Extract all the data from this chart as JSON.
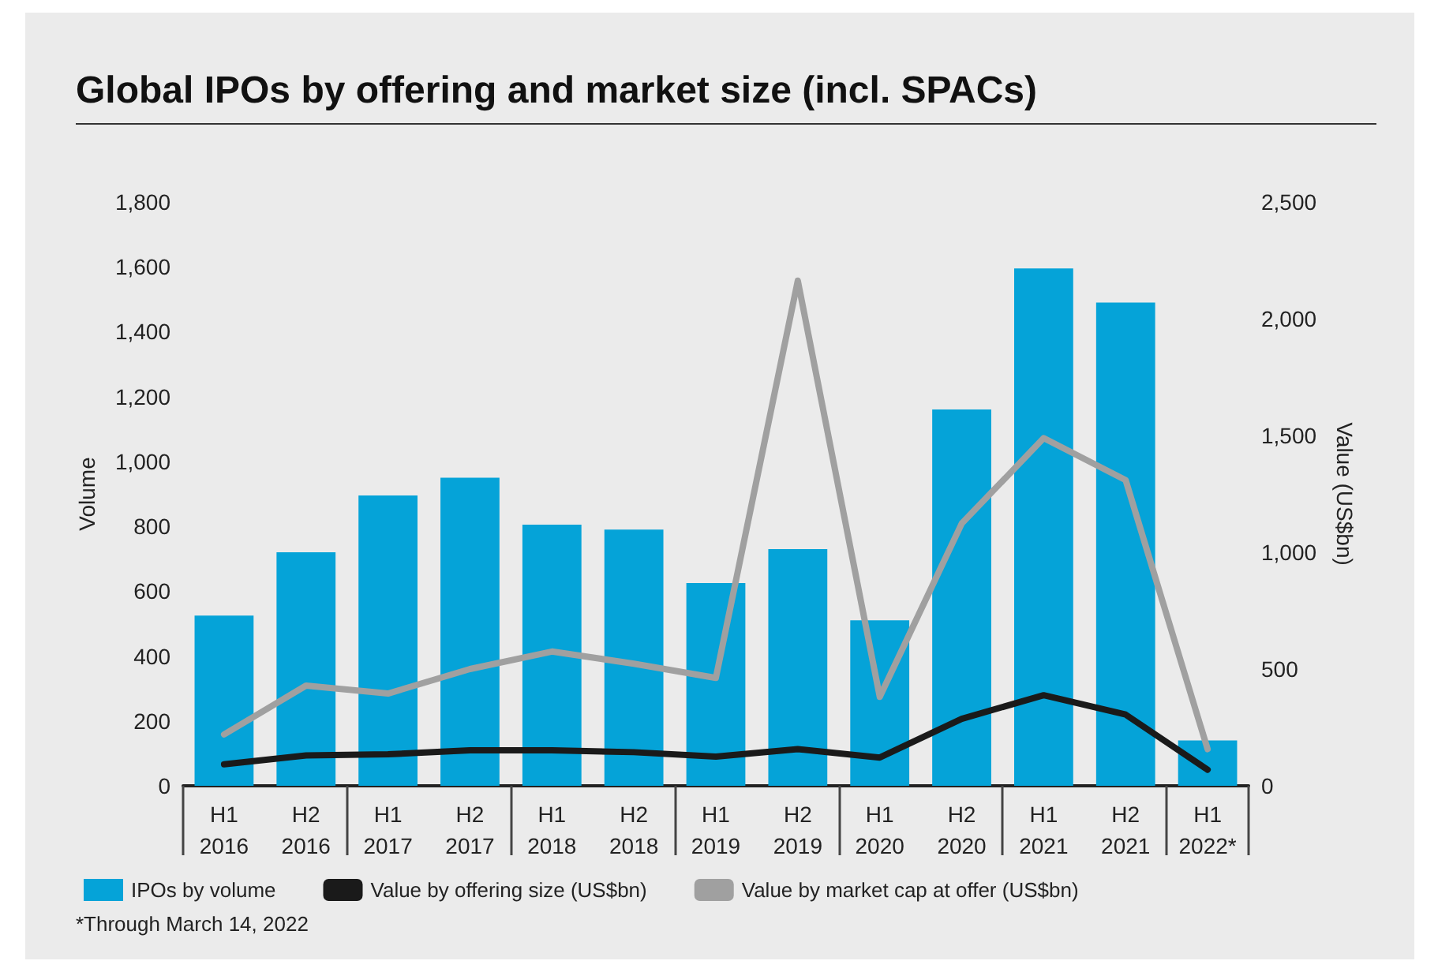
{
  "chart_data": {
    "type": "bar",
    "title": "Global IPOs by offering and market size (incl. SPACs)",
    "ylabel": "Volume",
    "y2label": "Value (US$bn)",
    "categories": [
      "H1\n2016",
      "H2\n2016",
      "H1\n2017",
      "H2\n2017",
      "H1\n2018",
      "H2\n2018",
      "H1\n2019",
      "H2\n2019",
      "H1\n2020",
      "H2\n2020",
      "H1\n2021",
      "H2\n2021",
      "H1\n2022*"
    ],
    "series": [
      {
        "name": "IPOs by volume",
        "color": "#05a3d8",
        "values": [
          525,
          720,
          895,
          950,
          805,
          790,
          625,
          730,
          510,
          1160,
          1595,
          1490,
          140
        ]
      },
      {
        "name": "Value by offering size (US$bn)",
        "type": "line",
        "axis": "y2",
        "color": "#1a1a1a",
        "values": [
          92,
          130,
          135,
          152,
          152,
          144,
          125,
          157,
          121,
          287,
          388,
          305,
          69
        ]
      },
      {
        "name": "Value by market cap at offer (US$bn)",
        "type": "line",
        "axis": "y2",
        "color": "#a0a0a0",
        "values": [
          220,
          429,
          395,
          500,
          575,
          523,
          462,
          2163,
          381,
          1123,
          1489,
          1309,
          157
        ]
      }
    ],
    "ylim": [
      0,
      1800
    ],
    "yticks": [
      0,
      {
        "value": 200,
        "label": "200"
      },
      {
        "value": 400,
        "label": "400"
      },
      {
        "value": 600,
        "label": "600"
      },
      {
        "value": 800,
        "label": "800"
      },
      {
        "value": 1000,
        "label": "1,000"
      },
      {
        "value": 1200,
        "label": "1,200"
      },
      {
        "value": 1400,
        "label": "1,400"
      },
      {
        "value": 1600,
        "label": "1,600"
      },
      {
        "value": 1800,
        "label": "1,800"
      }
    ],
    "y2lim": [
      0,
      2500
    ],
    "y2ticks": [
      0,
      500,
      {
        "value": 1000,
        "label": "1,000"
      },
      {
        "value": 1500,
        "label": "1,500"
      },
      {
        "value": 2000,
        "label": "2,000"
      },
      {
        "value": 2500,
        "label": "2,500"
      }
    ],
    "grid": false,
    "legend": "bottom left",
    "marker": "none",
    "line_style": "solid",
    "annotations": [
      "*Through March 14, 2022"
    ]
  }
}
